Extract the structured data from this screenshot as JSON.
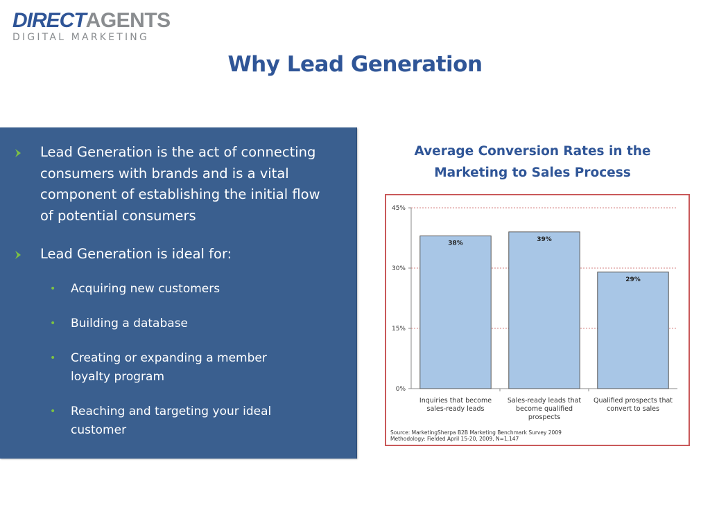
{
  "logo": {
    "word1": "DIRECT",
    "word2": "AGENTS",
    "tagline": "DIGITAL MARKETING"
  },
  "title": "Why Lead Generation",
  "panel": {
    "bullets": [
      {
        "text": "Lead Generation is the act of connecting consumers with brands and is a vital component of establishing the initial flow of potential consumers"
      },
      {
        "text": "Lead Generation is ideal for:"
      }
    ],
    "subbullets": [
      {
        "text": "Acquiring new customers"
      },
      {
        "text": "Building a database"
      },
      {
        "text": "Creating or expanding a member loyalty program"
      },
      {
        "text": "Reaching and targeting your ideal customer"
      }
    ],
    "colors": {
      "background": "#3a5f8f",
      "arrow": "#7dc242",
      "dot": "#7dc242"
    }
  },
  "chart_data": {
    "type": "bar",
    "title": "Average Conversion Rates in the Marketing to Sales Process",
    "categories": [
      [
        "Inquiries that become",
        "sales-ready leads"
      ],
      [
        "Sales-ready leads that",
        "become qualified",
        "prospects"
      ],
      [
        "Qualified prospects that",
        "convert to sales"
      ]
    ],
    "values": [
      38,
      39,
      29
    ],
    "data_labels": [
      "38%",
      "39%",
      "29%"
    ],
    "ylim": [
      0,
      45
    ],
    "yticks": [
      0,
      15,
      30,
      45
    ],
    "ytick_labels": [
      "0%",
      "15%",
      "30%",
      "45%"
    ],
    "grid": true,
    "bar_color": "#a8c6e6",
    "source": [
      "Source: MarketingSherpa B2B Marketing Benchmark Survey 2009",
      "Methodology: Fielded  April 15-20, 2009, N=1,147"
    ]
  }
}
